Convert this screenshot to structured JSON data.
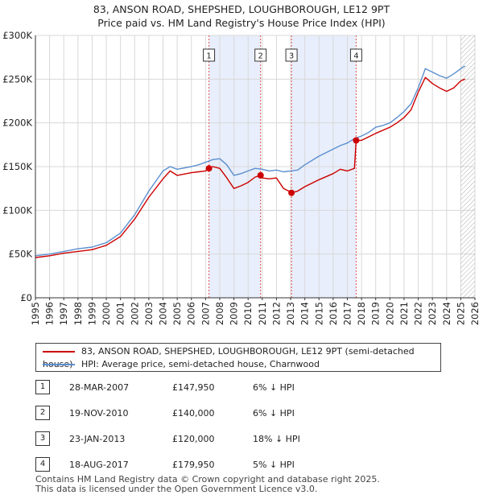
{
  "title": {
    "line1": "83, ANSON ROAD, SHEPSHED, LOUGHBOROUGH, LE12 9PT",
    "line2": "Price paid vs. HM Land Registry's House Price Index (HPI)"
  },
  "colors": {
    "property": "#cc0000",
    "hpi": "#5b8fd0",
    "band": "#e8eefb",
    "grid": "#d8d8d8",
    "marker_line": "#e05050"
  },
  "chart_data": {
    "type": "line",
    "xlabel": "",
    "ylabel": "",
    "xlim": [
      1995,
      2026
    ],
    "ylim": [
      0,
      300000
    ],
    "x_ticks": [
      "1995",
      "1996",
      "1997",
      "1998",
      "1999",
      "2000",
      "2001",
      "2002",
      "2003",
      "2004",
      "2005",
      "2006",
      "2007",
      "2008",
      "2009",
      "2010",
      "2011",
      "2012",
      "2013",
      "2014",
      "2015",
      "2016",
      "2017",
      "2018",
      "2019",
      "2020",
      "2021",
      "2022",
      "2023",
      "2024",
      "2025",
      "2026"
    ],
    "y_ticks": [
      {
        "value": 0,
        "label": "£0"
      },
      {
        "value": 50000,
        "label": "£50K"
      },
      {
        "value": 100000,
        "label": "£100K"
      },
      {
        "value": 150000,
        "label": "£150K"
      },
      {
        "value": 200000,
        "label": "£200K"
      },
      {
        "value": 250000,
        "label": "£250K"
      },
      {
        "value": 300000,
        "label": "£300K"
      }
    ],
    "hatch_from": 2025.0,
    "series": [
      {
        "name": "83, ANSON ROAD, SHEPSHED, LOUGHBOROUGH, LE12 9PT (semi-detached house)",
        "key": "property",
        "x": [
          1995.0,
          1996.0,
          1997.0,
          1998.0,
          1999.0,
          2000.0,
          2001.0,
          2002.0,
          2003.0,
          2004.0,
          2004.5,
          2005.0,
          2006.0,
          2006.5,
          2007.0,
          2007.24,
          2007.5,
          2008.0,
          2008.5,
          2009.0,
          2009.5,
          2010.0,
          2010.5,
          2010.88,
          2011.0,
          2011.5,
          2012.0,
          2012.5,
          2013.0,
          2013.06,
          2013.5,
          2014.0,
          2015.0,
          2016.0,
          2016.5,
          2017.0,
          2017.5,
          2017.62,
          2018.0,
          2019.0,
          2020.0,
          2020.5,
          2021.0,
          2021.5,
          2022.0,
          2022.5,
          2023.0,
          2023.5,
          2024.0,
          2024.5,
          2025.0,
          2025.3
        ],
        "y": [
          46000,
          48000,
          51000,
          53000,
          55000,
          60000,
          70000,
          90000,
          115000,
          136000,
          145000,
          140000,
          143000,
          144000,
          145000,
          147950,
          150000,
          148000,
          137000,
          125000,
          128000,
          132000,
          138000,
          140000,
          137000,
          136000,
          137000,
          125000,
          121000,
          120000,
          122000,
          127000,
          135000,
          142000,
          147000,
          145000,
          148000,
          179950,
          180000,
          188000,
          195000,
          200000,
          206000,
          215000,
          235000,
          252000,
          245000,
          240000,
          236000,
          240000,
          248000,
          250000
        ]
      },
      {
        "name": "HPI: Average price, semi-detached house, Charnwood",
        "key": "hpi",
        "x": [
          1995.0,
          1996.0,
          1997.0,
          1998.0,
          1999.0,
          2000.0,
          2001.0,
          2002.0,
          2003.0,
          2004.0,
          2004.5,
          2005.0,
          2006.0,
          2006.5,
          2007.0,
          2007.5,
          2008.0,
          2008.5,
          2009.0,
          2009.5,
          2010.0,
          2010.5,
          2011.0,
          2011.5,
          2012.0,
          2012.5,
          2013.0,
          2013.5,
          2014.0,
          2015.0,
          2016.0,
          2016.5,
          2017.0,
          2017.5,
          2018.0,
          2018.5,
          2019.0,
          2019.5,
          2020.0,
          2020.5,
          2021.0,
          2021.5,
          2022.0,
          2022.5,
          2023.0,
          2023.5,
          2024.0,
          2024.5,
          2025.0,
          2025.3
        ],
        "y": [
          48000,
          50000,
          53000,
          56000,
          58000,
          63000,
          74000,
          95000,
          122000,
          145000,
          150000,
          147000,
          150000,
          152000,
          155000,
          158000,
          159000,
          152000,
          140000,
          142000,
          145000,
          148000,
          147000,
          145000,
          146000,
          144000,
          145000,
          146000,
          152000,
          162000,
          170000,
          174000,
          177000,
          182000,
          185000,
          189000,
          195000,
          197000,
          200000,
          206000,
          213000,
          222000,
          240000,
          262000,
          258000,
          254000,
          251000,
          256000,
          262000,
          265000
        ]
      }
    ],
    "annotations": [
      {
        "label": "1",
        "x": 2007.24,
        "y": 147950
      },
      {
        "label": "2",
        "x": 2010.88,
        "y": 140000
      },
      {
        "label": "3",
        "x": 2013.06,
        "y": 120000
      },
      {
        "label": "4",
        "x": 2017.62,
        "y": 179950
      }
    ],
    "shaded_ranges": [
      [
        2007.24,
        2010.88
      ],
      [
        2013.06,
        2017.62
      ]
    ]
  },
  "legend": {
    "property_label": "83, ANSON ROAD, SHEPSHED, LOUGHBOROUGH, LE12 9PT (semi-detached house)",
    "hpi_label": "HPI: Average price, semi-detached house, Charnwood"
  },
  "sales": [
    {
      "num": "1",
      "date": "28-MAR-2007",
      "price": "£147,950",
      "hpi": "6% ↓ HPI"
    },
    {
      "num": "2",
      "date": "19-NOV-2010",
      "price": "£140,000",
      "hpi": "6% ↓ HPI"
    },
    {
      "num": "3",
      "date": "23-JAN-2013",
      "price": "£120,000",
      "hpi": "18% ↓ HPI"
    },
    {
      "num": "4",
      "date": "18-AUG-2017",
      "price": "£179,950",
      "hpi": "5% ↓ HPI"
    }
  ],
  "footer": {
    "line1": "Contains HM Land Registry data © Crown copyright and database right 2025.",
    "line2": "This data is licensed under the Open Government Licence v3.0."
  }
}
